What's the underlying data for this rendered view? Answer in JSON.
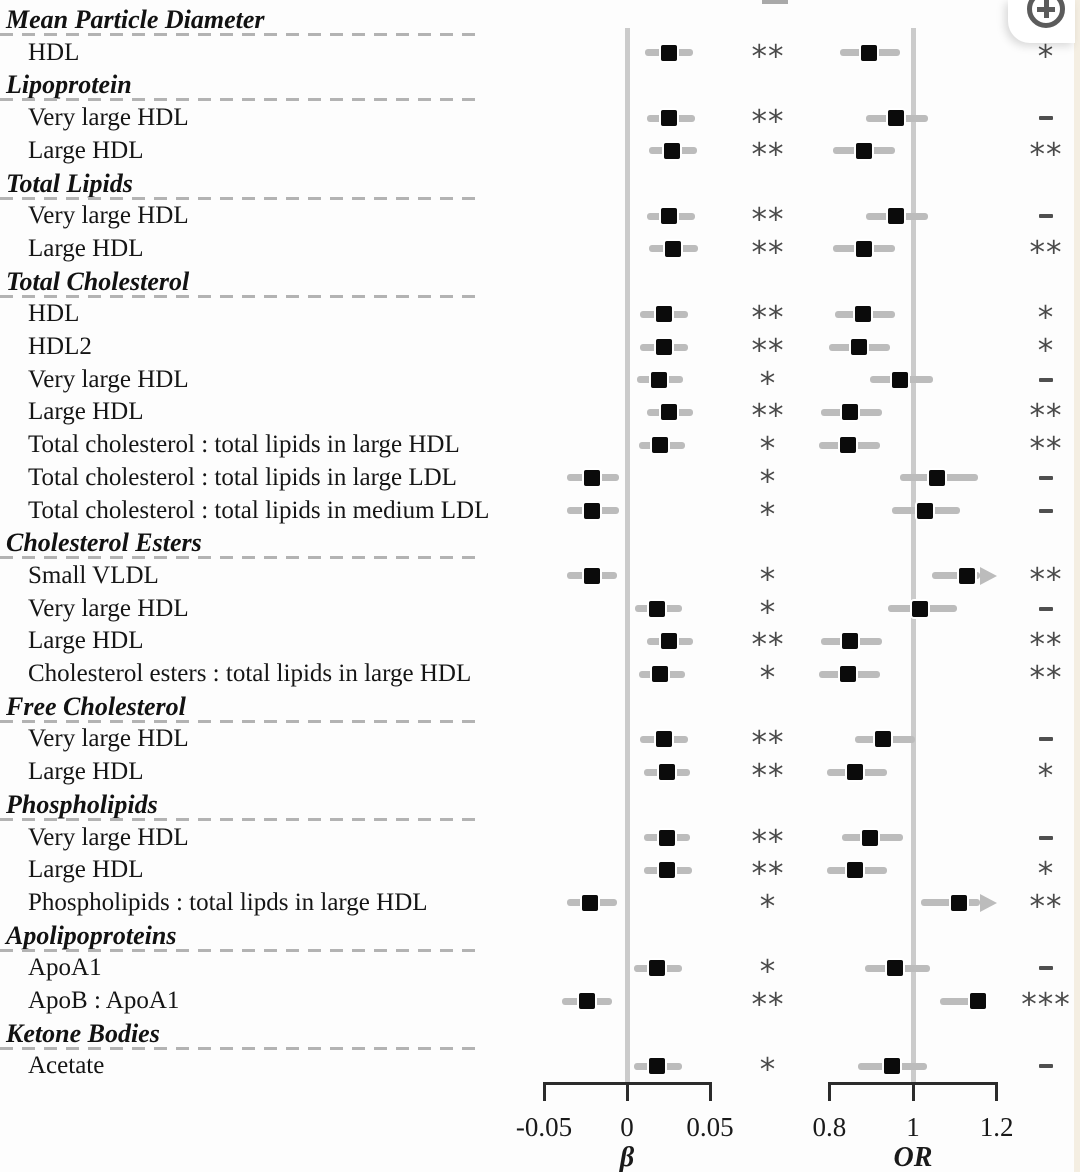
{
  "figure": {
    "description": "Forest plot of lipid biomarker associations with beta and odds-ratio panels",
    "zoom_control": {
      "icon": "circled-plus"
    }
  },
  "chart_data": {
    "type": "forest",
    "grid": false,
    "panels": [
      {
        "id": "beta",
        "axis_label": "β",
        "ref": 0,
        "axis_range": [
          -0.05,
          0.05
        ],
        "ticks": [
          {
            "v": -0.05,
            "label": "-0.05"
          },
          {
            "v": 0,
            "label": "0"
          },
          {
            "v": 0.05,
            "label": "0.05"
          }
        ]
      },
      {
        "id": "or",
        "axis_label": "OR",
        "ref": 1,
        "axis_range": [
          0.8,
          1.2
        ],
        "ticks": [
          {
            "v": 0.8,
            "label": "0.8"
          },
          {
            "v": 1,
            "label": "1"
          },
          {
            "v": 1.2,
            "label": "1.2"
          }
        ]
      }
    ],
    "significance_values": [
      "*",
      "**",
      "***",
      "-"
    ],
    "groups": [
      {
        "category": "Mean Particle Diameter",
        "items": [
          {
            "label": "HDL",
            "beta": {
              "est": 0.025,
              "lo": 0.011,
              "hi": 0.04,
              "sig": "**"
            },
            "or": {
              "est": 0.895,
              "lo": 0.825,
              "hi": 0.97,
              "sig": "*"
            }
          }
        ]
      },
      {
        "category": "Lipoprotein",
        "items": [
          {
            "label": "Very large HDL",
            "beta": {
              "est": 0.025,
              "lo": 0.012,
              "hi": 0.041,
              "sig": "**"
            },
            "or": {
              "est": 0.96,
              "lo": 0.888,
              "hi": 1.036,
              "sig": "-"
            }
          },
          {
            "label": "Large HDL",
            "beta": {
              "est": 0.027,
              "lo": 0.013,
              "hi": 0.042,
              "sig": "**"
            },
            "or": {
              "est": 0.883,
              "lo": 0.809,
              "hi": 0.957,
              "sig": "**"
            }
          }
        ]
      },
      {
        "category": "Total Lipids",
        "items": [
          {
            "label": "Very large HDL",
            "beta": {
              "est": 0.025,
              "lo": 0.012,
              "hi": 0.041,
              "sig": "**"
            },
            "or": {
              "est": 0.96,
              "lo": 0.888,
              "hi": 1.036,
              "sig": "-"
            }
          },
          {
            "label": "Large HDL",
            "beta": {
              "est": 0.028,
              "lo": 0.013,
              "hi": 0.043,
              "sig": "**"
            },
            "or": {
              "est": 0.883,
              "lo": 0.809,
              "hi": 0.957,
              "sig": "**"
            }
          }
        ]
      },
      {
        "category": "Total Cholesterol",
        "items": [
          {
            "label": "HDL",
            "beta": {
              "est": 0.022,
              "lo": 0.008,
              "hi": 0.037,
              "sig": "**"
            },
            "or": {
              "est": 0.88,
              "lo": 0.813,
              "hi": 0.957,
              "sig": "*"
            }
          },
          {
            "label": "HDL2",
            "beta": {
              "est": 0.022,
              "lo": 0.008,
              "hi": 0.037,
              "sig": "**"
            },
            "or": {
              "est": 0.87,
              "lo": 0.8,
              "hi": 0.945,
              "sig": "*"
            }
          },
          {
            "label": "Very large HDL",
            "beta": {
              "est": 0.019,
              "lo": 0.006,
              "hi": 0.034,
              "sig": "*"
            },
            "or": {
              "est": 0.97,
              "lo": 0.897,
              "hi": 1.048,
              "sig": "-"
            }
          },
          {
            "label": "Large HDL",
            "beta": {
              "est": 0.025,
              "lo": 0.012,
              "hi": 0.04,
              "sig": "**"
            },
            "or": {
              "est": 0.85,
              "lo": 0.78,
              "hi": 0.925,
              "sig": "**"
            }
          },
          {
            "label": "Total cholesterol : total lipids in large HDL",
            "beta": {
              "est": 0.02,
              "lo": 0.007,
              "hi": 0.035,
              "sig": "*"
            },
            "or": {
              "est": 0.845,
              "lo": 0.775,
              "hi": 0.92,
              "sig": "**"
            }
          },
          {
            "label": "Total cholesterol : total lipids in large LDL",
            "beta": {
              "est": -0.021,
              "lo": -0.036,
              "hi": -0.005,
              "sig": "*"
            },
            "or": {
              "est": 1.057,
              "lo": 0.969,
              "hi": 1.156,
              "sig": "-"
            }
          },
          {
            "label": "Total cholesterol : total lipids in medium LDL",
            "beta": {
              "est": -0.021,
              "lo": -0.036,
              "hi": -0.005,
              "sig": "*"
            },
            "or": {
              "est": 1.029,
              "lo": 0.95,
              "hi": 1.112,
              "sig": "-"
            }
          }
        ]
      },
      {
        "category": "Cholesterol Esters",
        "items": [
          {
            "label": "Small VLDL",
            "beta": {
              "est": -0.021,
              "lo": -0.036,
              "hi": -0.006,
              "sig": "*"
            },
            "or": {
              "est": 1.13,
              "lo": 1.045,
              "hi": 1.2,
              "sig": "**",
              "arrow": true
            }
          },
          {
            "label": "Very large HDL",
            "beta": {
              "est": 0.018,
              "lo": 0.005,
              "hi": 0.033,
              "sig": "*"
            },
            "or": {
              "est": 1.017,
              "lo": 0.94,
              "hi": 1.105,
              "sig": "-"
            }
          },
          {
            "label": "Large HDL",
            "beta": {
              "est": 0.025,
              "lo": 0.012,
              "hi": 0.04,
              "sig": "**"
            },
            "or": {
              "est": 0.849,
              "lo": 0.78,
              "hi": 0.925,
              "sig": "**"
            }
          },
          {
            "label": "Cholesterol esters : total lipids in large HDL",
            "beta": {
              "est": 0.02,
              "lo": 0.007,
              "hi": 0.035,
              "sig": "*"
            },
            "or": {
              "est": 0.845,
              "lo": 0.775,
              "hi": 0.92,
              "sig": "**"
            }
          }
        ]
      },
      {
        "category": "Free Cholesterol",
        "items": [
          {
            "label": "Very large HDL",
            "beta": {
              "est": 0.022,
              "lo": 0.008,
              "hi": 0.037,
              "sig": "**"
            },
            "or": {
              "est": 0.928,
              "lo": 0.861,
              "hi": 1.005,
              "sig": "-"
            }
          },
          {
            "label": "Large HDL",
            "beta": {
              "est": 0.024,
              "lo": 0.01,
              "hi": 0.038,
              "sig": "**"
            },
            "or": {
              "est": 0.861,
              "lo": 0.794,
              "hi": 0.938,
              "sig": "*"
            }
          }
        ]
      },
      {
        "category": "Phospholipids",
        "items": [
          {
            "label": "Very large HDL",
            "beta": {
              "est": 0.024,
              "lo": 0.01,
              "hi": 0.038,
              "sig": "**"
            },
            "or": {
              "est": 0.897,
              "lo": 0.83,
              "hi": 0.975,
              "sig": "-"
            }
          },
          {
            "label": "Large HDL",
            "beta": {
              "est": 0.024,
              "lo": 0.01,
              "hi": 0.039,
              "sig": "**"
            },
            "or": {
              "est": 0.861,
              "lo": 0.794,
              "hi": 0.938,
              "sig": "*"
            }
          },
          {
            "label": "Phospholipids : total lipds in large HDL",
            "beta": {
              "est": -0.022,
              "lo": -0.036,
              "hi": -0.006,
              "sig": "*"
            },
            "or": {
              "est": 1.11,
              "lo": 1.02,
              "hi": 1.2,
              "sig": "**",
              "arrow": true
            }
          }
        ]
      },
      {
        "category": "Apolipoproteins",
        "items": [
          {
            "label": "ApoA1",
            "beta": {
              "est": 0.018,
              "lo": 0.004,
              "hi": 0.033,
              "sig": "*"
            },
            "or": {
              "est": 0.957,
              "lo": 0.885,
              "hi": 1.041,
              "sig": "-"
            }
          },
          {
            "label": "ApoB : ApoA1",
            "beta": {
              "est": -0.024,
              "lo": -0.039,
              "hi": -0.009,
              "sig": "**"
            },
            "or": {
              "est": 1.155,
              "lo": 1.065,
              "hi": 1.175,
              "sig": "***"
            }
          }
        ]
      },
      {
        "category": "Ketone Bodies",
        "items": [
          {
            "label": "Acetate",
            "beta": {
              "est": 0.018,
              "lo": 0.004,
              "hi": 0.033,
              "sig": "*"
            },
            "or": {
              "est": 0.95,
              "lo": 0.868,
              "hi": 1.034,
              "sig": "-"
            }
          }
        ]
      }
    ]
  }
}
